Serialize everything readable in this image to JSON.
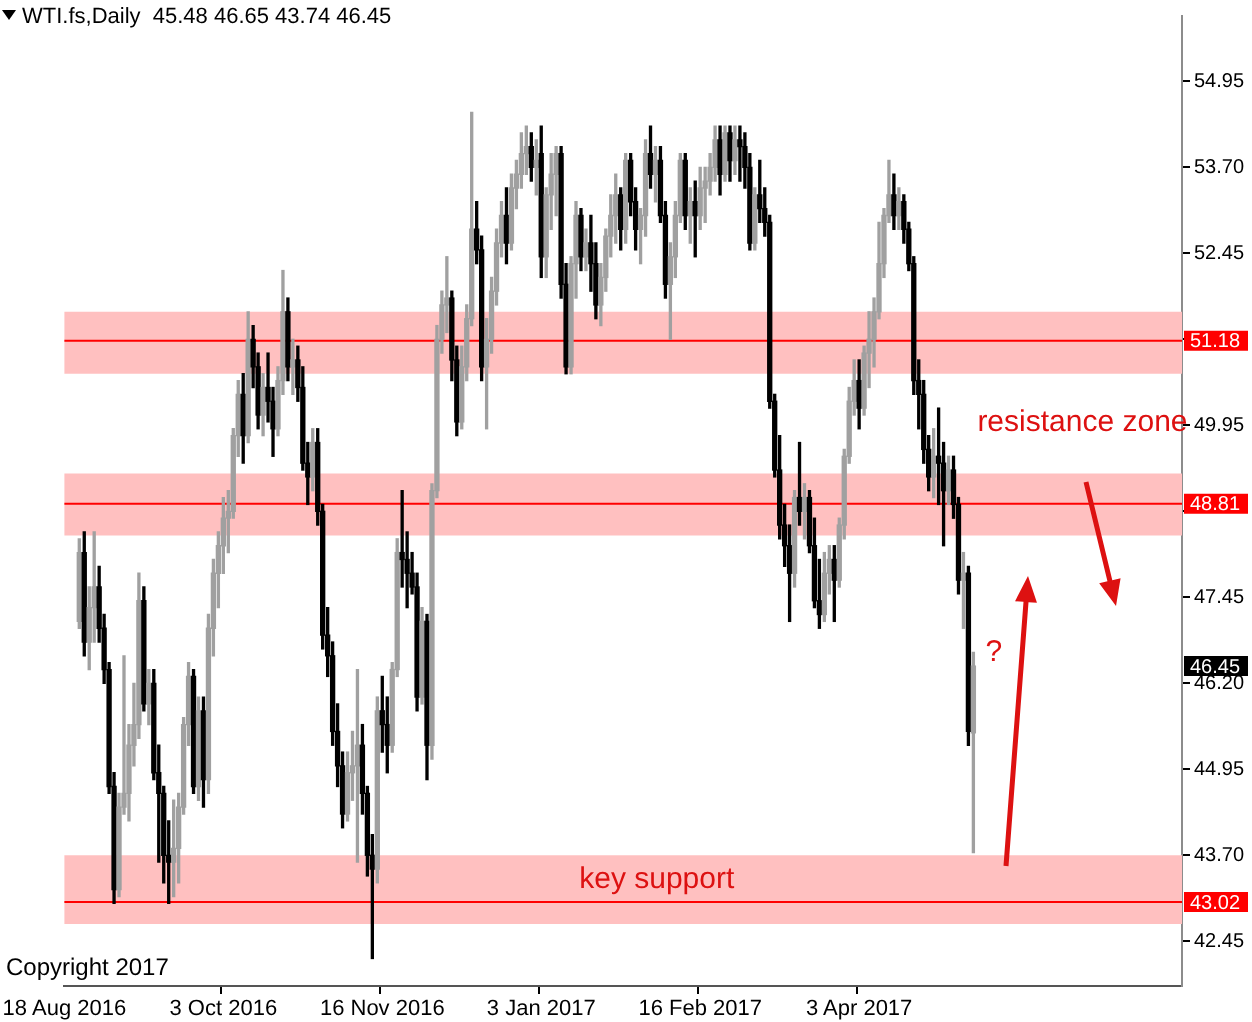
{
  "chart_data": {
    "type": "candlestick",
    "title": "WTI.fs,Daily  45.48 46.65 43.74 46.45",
    "categories": [
      "18 Aug 2016",
      null,
      null,
      null,
      null,
      null,
      null,
      null,
      null,
      null,
      null,
      null,
      null,
      null,
      null,
      null,
      null,
      null,
      null,
      null,
      null,
      null,
      null,
      null,
      null,
      null,
      null,
      null,
      null,
      null,
      null,
      null,
      "3 Oct 2016",
      null,
      null,
      null,
      null,
      null,
      null,
      null,
      null,
      null,
      null,
      null,
      null,
      null,
      null,
      null,
      null,
      null,
      null,
      null,
      null,
      null,
      null,
      null,
      null,
      null,
      null,
      null,
      null,
      null,
      null,
      null,
      "16 Nov 2016",
      null,
      null,
      null,
      null,
      null,
      null,
      null,
      null,
      null,
      null,
      null,
      null,
      null,
      null,
      null,
      null,
      null,
      null,
      null,
      null,
      null,
      null,
      null,
      null,
      null,
      null,
      null,
      null,
      null,
      null,
      null,
      "3 Jan 2017",
      null,
      null,
      null,
      null,
      null,
      null,
      null,
      null,
      null,
      null,
      null,
      null,
      null,
      null,
      null,
      null,
      null,
      null,
      null,
      null,
      null,
      null,
      null,
      null,
      null,
      null,
      null,
      null,
      null,
      null,
      null,
      "16 Feb 2017",
      null,
      null,
      null,
      null,
      null,
      null,
      null,
      null,
      null,
      null,
      null,
      null,
      null,
      null,
      null,
      null,
      null,
      null,
      null,
      null,
      null,
      null,
      null,
      null,
      null,
      null,
      null,
      null,
      null,
      null,
      null,
      "3 Apr 2017",
      null,
      null,
      null,
      null,
      null,
      null,
      null,
      null,
      null,
      null,
      null,
      null,
      null,
      null,
      null,
      null,
      null,
      null,
      null,
      null,
      null,
      null,
      null,
      null,
      null,
      null,
      null,
      null,
      null,
      null,
      null,
      null,
      null,
      null,
      null,
      null,
      null,
      null,
      null,
      null,
      null,
      null,
      null,
      null,
      null,
      null,
      null,
      null,
      null,
      null,
      null,
      null,
      null,
      null,
      null,
      null,
      null,
      null,
      null,
      null,
      null,
      null,
      null,
      null,
      null
    ],
    "ohlc": [
      null,
      null,
      null,
      [
        47.1,
        48.3,
        47.0,
        48.1
      ],
      [
        48.1,
        48.4,
        46.6,
        46.8
      ],
      [
        46.8,
        47.6,
        46.4,
        47.3
      ],
      [
        47.3,
        48.4,
        46.8,
        47.6
      ],
      [
        47.6,
        47.9,
        46.8,
        47.0
      ],
      [
        47.0,
        47.2,
        46.2,
        46.4
      ],
      [
        46.4,
        46.5,
        44.6,
        44.7
      ],
      [
        44.7,
        44.9,
        43.0,
        43.2
      ],
      [
        43.2,
        44.6,
        43.1,
        44.4
      ],
      [
        44.4,
        46.6,
        44.3,
        44.6
      ],
      [
        44.6,
        45.6,
        44.2,
        45.3
      ],
      [
        45.3,
        46.2,
        45.0,
        45.6
      ],
      [
        45.6,
        47.8,
        45.4,
        47.4
      ],
      [
        47.4,
        47.6,
        45.8,
        45.9
      ],
      [
        45.9,
        46.4,
        45.6,
        46.2
      ],
      [
        46.2,
        46.4,
        44.8,
        44.9
      ],
      [
        44.9,
        45.3,
        43.6,
        44.6
      ],
      [
        44.6,
        44.7,
        43.3,
        43.7
      ],
      [
        43.7,
        44.2,
        43.0,
        43.6
      ],
      [
        43.6,
        44.5,
        43.1,
        43.8
      ],
      [
        43.8,
        44.6,
        43.3,
        44.4
      ],
      [
        44.4,
        45.7,
        44.3,
        45.6
      ],
      [
        45.6,
        46.5,
        45.3,
        46.3
      ],
      [
        46.3,
        46.4,
        44.6,
        44.7
      ],
      [
        44.7,
        46.0,
        44.5,
        45.8
      ],
      [
        45.8,
        46.0,
        44.4,
        44.8
      ],
      [
        44.8,
        47.2,
        44.6,
        47.0
      ],
      [
        47.0,
        48.0,
        46.6,
        47.8
      ],
      [
        47.8,
        48.4,
        47.3,
        48.2
      ],
      [
        48.2,
        48.9,
        47.8,
        48.6
      ],
      [
        48.6,
        49.0,
        48.1,
        48.7
      ],
      [
        48.7,
        49.9,
        48.6,
        49.8
      ],
      [
        49.8,
        50.6,
        49.5,
        50.4
      ],
      [
        50.4,
        50.7,
        49.4,
        49.8
      ],
      [
        49.8,
        51.6,
        49.7,
        51.2
      ],
      [
        51.2,
        51.4,
        50.5,
        50.8
      ],
      [
        50.8,
        51.0,
        49.9,
        50.1
      ],
      [
        50.1,
        50.7,
        49.8,
        50.5
      ],
      [
        50.5,
        51.0,
        50.0,
        50.3
      ],
      [
        50.3,
        50.5,
        49.5,
        49.9
      ],
      [
        49.9,
        50.8,
        49.8,
        50.6
      ],
      [
        50.6,
        52.2,
        50.4,
        51.6
      ],
      [
        51.6,
        51.8,
        50.6,
        50.8
      ],
      [
        50.8,
        51.2,
        50.4,
        50.9
      ],
      [
        50.9,
        51.1,
        50.3,
        50.5
      ],
      [
        50.5,
        50.8,
        49.3,
        49.4
      ],
      [
        49.4,
        49.7,
        48.8,
        49.2
      ],
      [
        49.2,
        49.9,
        49.0,
        49.7
      ],
      [
        49.7,
        49.9,
        48.5,
        48.7
      ],
      [
        48.7,
        48.8,
        46.7,
        46.9
      ],
      [
        46.9,
        47.3,
        46.3,
        46.6
      ],
      [
        46.6,
        46.8,
        45.3,
        45.5
      ],
      [
        45.5,
        45.9,
        44.7,
        45.0
      ],
      [
        45.0,
        45.2,
        44.1,
        44.3
      ],
      [
        44.3,
        45.2,
        44.2,
        44.9
      ],
      [
        44.9,
        45.5,
        44.5,
        45.0
      ],
      [
        45.0,
        46.4,
        43.6,
        45.3
      ],
      [
        45.3,
        45.6,
        44.3,
        44.6
      ],
      [
        44.6,
        44.7,
        43.4,
        43.7
      ],
      [
        43.7,
        44.0,
        42.2,
        43.5
      ],
      [
        43.5,
        46.0,
        43.3,
        45.8
      ],
      [
        45.8,
        46.3,
        45.2,
        45.6
      ],
      [
        45.6,
        46.0,
        44.9,
        45.3
      ],
      [
        45.3,
        46.5,
        45.2,
        46.4
      ],
      [
        46.4,
        48.3,
        46.3,
        48.1
      ],
      [
        48.1,
        49.0,
        47.6,
        48.0
      ],
      [
        48.0,
        48.4,
        47.3,
        47.8
      ],
      [
        47.8,
        48.1,
        47.5,
        47.6
      ],
      [
        47.6,
        47.8,
        45.8,
        46.0
      ],
      [
        46.0,
        47.3,
        45.9,
        47.1
      ],
      [
        47.1,
        47.2,
        44.8,
        45.3
      ],
      [
        45.3,
        49.1,
        45.1,
        49.0
      ],
      [
        49.0,
        51.4,
        48.9,
        51.2
      ],
      [
        51.2,
        51.9,
        51.0,
        51.7
      ],
      [
        51.7,
        52.4,
        51.3,
        51.8
      ],
      [
        51.8,
        51.9,
        50.6,
        50.9
      ],
      [
        50.9,
        51.1,
        49.8,
        50.0
      ],
      [
        50.0,
        51.1,
        49.9,
        50.8
      ],
      [
        50.8,
        51.7,
        50.6,
        51.5
      ],
      [
        51.5,
        54.5,
        51.4,
        52.8
      ],
      [
        52.8,
        53.2,
        52.3,
        52.5
      ],
      [
        52.5,
        52.7,
        50.6,
        50.8
      ],
      [
        50.8,
        51.5,
        49.9,
        51.2
      ],
      [
        51.2,
        52.1,
        51.0,
        51.9
      ],
      [
        51.9,
        52.8,
        51.7,
        52.6
      ],
      [
        52.6,
        53.2,
        52.4,
        53.0
      ],
      [
        53.0,
        53.4,
        52.3,
        52.6
      ],
      [
        52.6,
        53.6,
        52.5,
        53.4
      ],
      [
        53.4,
        53.8,
        53.1,
        53.6
      ],
      [
        53.6,
        54.2,
        53.4,
        53.9
      ],
      [
        53.9,
        54.3,
        53.6,
        54.0
      ],
      [
        54.0,
        54.2,
        53.5,
        53.7
      ],
      [
        53.7,
        54.1,
        53.3,
        53.8
      ],
      [
        53.9,
        54.3,
        52.1,
        52.4
      ],
      [
        52.4,
        53.4,
        52.1,
        53.3
      ],
      [
        53.3,
        53.9,
        52.8,
        53.6
      ],
      [
        53.6,
        54.0,
        53.0,
        53.9
      ],
      [
        53.9,
        54.0,
        51.8,
        52.0
      ],
      [
        52.0,
        52.3,
        50.7,
        50.8
      ],
      [
        50.8,
        52.4,
        50.7,
        52.3
      ],
      [
        52.3,
        53.2,
        51.8,
        53.0
      ],
      [
        53.0,
        53.1,
        52.2,
        52.4
      ],
      [
        52.4,
        52.8,
        52.2,
        52.6
      ],
      [
        52.6,
        53.0,
        51.9,
        52.3
      ],
      [
        52.3,
        52.6,
        51.5,
        51.7
      ],
      [
        51.7,
        52.3,
        51.4,
        52.1
      ],
      [
        52.1,
        52.8,
        51.9,
        52.7
      ],
      [
        52.7,
        53.3,
        52.4,
        53.0
      ],
      [
        53.0,
        53.6,
        52.6,
        53.3
      ],
      [
        53.3,
        53.4,
        52.5,
        52.8
      ],
      [
        52.8,
        53.9,
        52.6,
        53.8
      ],
      [
        53.8,
        53.9,
        53.0,
        53.2
      ],
      [
        53.2,
        53.4,
        52.5,
        52.8
      ],
      [
        52.8,
        53.1,
        52.3,
        53.0
      ],
      [
        53.0,
        54.1,
        52.7,
        53.9
      ],
      [
        53.9,
        54.3,
        53.4,
        53.6
      ],
      [
        53.6,
        54.0,
        53.2,
        53.8
      ],
      [
        53.8,
        54.0,
        52.9,
        53.0
      ],
      [
        53.0,
        53.2,
        51.8,
        52.0
      ],
      [
        52.0,
        52.6,
        51.2,
        52.4
      ],
      [
        52.4,
        53.2,
        52.1,
        53.0
      ],
      [
        53.0,
        53.9,
        52.9,
        53.8
      ],
      [
        53.8,
        53.9,
        52.8,
        53.0
      ],
      [
        53.0,
        53.4,
        52.6,
        53.2
      ],
      [
        53.2,
        53.5,
        52.4,
        53.0
      ],
      [
        53.0,
        53.7,
        52.8,
        53.4
      ],
      [
        53.4,
        53.7,
        52.9,
        53.5
      ],
      [
        53.5,
        53.9,
        53.3,
        53.7
      ],
      [
        53.7,
        54.3,
        53.5,
        54.1
      ],
      [
        54.1,
        54.3,
        53.3,
        53.6
      ],
      [
        53.6,
        54.3,
        53.5,
        54.2
      ],
      [
        54.2,
        54.3,
        53.5,
        53.8
      ],
      [
        53.8,
        54.3,
        53.6,
        54.1
      ],
      [
        54.1,
        54.3,
        53.5,
        54.0
      ],
      [
        54.0,
        54.2,
        53.4,
        53.7
      ],
      [
        53.7,
        53.9,
        52.5,
        52.6
      ],
      [
        52.6,
        53.4,
        52.5,
        53.3
      ],
      [
        53.3,
        53.8,
        52.9,
        53.1
      ],
      [
        53.1,
        53.4,
        52.7,
        52.9
      ],
      [
        52.9,
        53.0,
        50.2,
        50.3
      ],
      [
        50.3,
        50.4,
        49.2,
        49.3
      ],
      [
        49.3,
        49.8,
        48.3,
        48.5
      ],
      [
        48.5,
        48.8,
        47.9,
        48.2
      ],
      [
        48.2,
        48.5,
        47.1,
        47.8
      ],
      [
        47.8,
        49.0,
        47.6,
        48.9
      ],
      [
        48.9,
        49.7,
        48.5,
        48.7
      ],
      [
        48.7,
        49.1,
        48.3,
        48.9
      ],
      [
        48.9,
        49.0,
        48.1,
        48.2
      ],
      [
        48.2,
        48.6,
        47.3,
        47.4
      ],
      [
        47.4,
        48.0,
        47.0,
        47.2
      ],
      [
        47.2,
        48.1,
        47.1,
        47.8
      ],
      [
        47.8,
        48.2,
        47.5,
        48.0
      ],
      [
        48.0,
        48.2,
        47.1,
        47.7
      ],
      [
        47.7,
        48.6,
        47.6,
        48.5
      ],
      [
        48.5,
        49.6,
        48.3,
        49.5
      ],
      [
        49.5,
        50.5,
        49.4,
        50.3
      ],
      [
        50.3,
        50.9,
        50.1,
        50.6
      ],
      [
        50.6,
        50.9,
        49.9,
        50.2
      ],
      [
        50.2,
        51.1,
        50.1,
        51.0
      ],
      [
        51.0,
        51.6,
        50.5,
        51.2
      ],
      [
        51.2,
        51.8,
        50.8,
        51.6
      ],
      [
        51.6,
        52.9,
        51.5,
        52.3
      ],
      [
        52.3,
        53.1,
        52.1,
        53.0
      ],
      [
        53.0,
        53.8,
        52.9,
        53.3
      ],
      [
        53.3,
        53.6,
        52.8,
        53.0
      ],
      [
        53.0,
        53.4,
        52.8,
        53.2
      ],
      [
        53.2,
        53.3,
        52.6,
        52.8
      ],
      [
        52.8,
        52.9,
        52.2,
        52.3
      ],
      [
        52.3,
        52.4,
        50.4,
        50.6
      ],
      [
        50.6,
        50.9,
        49.9,
        50.4
      ],
      [
        50.4,
        50.6,
        49.4,
        49.6
      ],
      [
        49.6,
        49.8,
        49.0,
        49.2
      ],
      [
        49.2,
        49.9,
        48.9,
        49.5
      ],
      [
        49.5,
        50.2,
        48.8,
        49.4
      ],
      [
        49.4,
        49.7,
        48.2,
        49.0
      ],
      [
        49.0,
        49.5,
        48.8,
        49.3
      ],
      [
        49.3,
        49.5,
        48.6,
        48.8
      ],
      [
        48.8,
        48.9,
        47.5,
        47.7
      ],
      [
        47.7,
        48.1,
        47.0,
        47.8
      ],
      [
        47.8,
        47.9,
        45.3,
        45.5
      ],
      [
        45.48,
        46.65,
        43.74,
        46.45
      ],
      null,
      null,
      null,
      null,
      null,
      null,
      null,
      null,
      null,
      null,
      null,
      null,
      null,
      null,
      null,
      null,
      null,
      null,
      null,
      null,
      null,
      null,
      null,
      null,
      null,
      null,
      null,
      null,
      null,
      null,
      null,
      null,
      null,
      null,
      null,
      null,
      null,
      null,
      null,
      null,
      null,
      null
    ],
    "colors": [
      null,
      null,
      null,
      "#a0a0a0",
      "#000000",
      "#a0a0a0",
      "#a0a0a0",
      "#000000",
      "#000000",
      "#000000",
      "#000000",
      "#a0a0a0",
      "#a0a0a0",
      "#a0a0a0",
      "#a0a0a0",
      "#a0a0a0",
      "#000000",
      "#a0a0a0",
      "#000000",
      "#000000",
      "#000000",
      "#000000",
      "#a0a0a0",
      "#a0a0a0",
      "#a0a0a0",
      "#a0a0a0",
      "#000000",
      "#a0a0a0",
      "#000000",
      "#a0a0a0",
      "#a0a0a0",
      "#a0a0a0",
      "#a0a0a0",
      "#a0a0a0",
      "#a0a0a0",
      "#a0a0a0",
      "#000000",
      "#a0a0a0",
      "#000000",
      "#000000",
      "#a0a0a0",
      "#000000",
      "#000000",
      "#a0a0a0",
      "#a0a0a0",
      "#000000",
      "#a0a0a0",
      "#000000",
      "#000000",
      "#000000",
      "#a0a0a0",
      "#000000",
      "#000000",
      "#000000",
      "#000000",
      "#000000",
      "#000000",
      "#a0a0a0",
      "#a0a0a0",
      "#a0a0a0",
      "#000000",
      "#000000",
      "#000000",
      "#a0a0a0",
      "#000000",
      "#000000",
      "#a0a0a0",
      "#a0a0a0",
      "#000000",
      "#000000",
      "#000000",
      "#000000",
      "#a0a0a0",
      "#000000",
      "#a0a0a0",
      "#a0a0a0",
      "#a0a0a0",
      "#a0a0a0",
      "#000000",
      "#000000",
      "#a0a0a0",
      "#a0a0a0",
      "#a0a0a0",
      "#000000",
      "#000000",
      "#a0a0a0",
      "#a0a0a0",
      "#a0a0a0",
      "#a0a0a0",
      "#000000",
      "#a0a0a0",
      "#a0a0a0",
      "#a0a0a0",
      "#a0a0a0",
      "#000000",
      "#a0a0a0",
      "#000000",
      "#a0a0a0",
      "#a0a0a0",
      "#a0a0a0",
      "#000000",
      "#000000",
      "#a0a0a0",
      "#a0a0a0",
      "#000000",
      "#a0a0a0",
      "#000000",
      "#000000",
      "#a0a0a0",
      "#a0a0a0",
      "#a0a0a0",
      "#a0a0a0",
      "#000000",
      "#a0a0a0",
      "#000000",
      "#000000",
      "#a0a0a0",
      "#a0a0a0",
      "#000000",
      "#a0a0a0",
      "#000000",
      "#000000",
      "#a0a0a0",
      "#a0a0a0",
      "#a0a0a0",
      "#000000",
      "#a0a0a0",
      "#000000",
      "#a0a0a0",
      "#a0a0a0",
      "#a0a0a0",
      "#a0a0a0",
      "#000000",
      "#a0a0a0",
      "#000000",
      "#a0a0a0",
      "#000000",
      "#000000",
      "#000000",
      "#a0a0a0",
      "#000000",
      "#000000",
      "#000000",
      "#000000",
      "#000000",
      "#000000",
      "#000000",
      "#a0a0a0",
      "#000000",
      "#a0a0a0",
      "#000000",
      "#000000",
      "#000000",
      "#a0a0a0",
      "#a0a0a0",
      "#000000",
      "#a0a0a0",
      "#a0a0a0",
      "#a0a0a0",
      "#a0a0a0",
      "#000000",
      "#a0a0a0",
      "#a0a0a0",
      "#a0a0a0",
      "#a0a0a0",
      "#a0a0a0",
      "#a0a0a0",
      "#000000",
      "#a0a0a0",
      "#000000",
      "#000000",
      "#000000",
      "#000000",
      "#000000",
      "#000000",
      "#a0a0a0",
      "#000000",
      "#000000",
      "#a0a0a0",
      "#000000",
      "#000000",
      "#a0a0a0",
      "#000000",
      "#a0a0a0",
      null,
      null,
      null,
      null,
      null,
      null,
      null,
      null,
      null,
      null,
      null,
      null,
      null,
      null,
      null,
      null,
      null,
      null,
      null,
      null,
      null,
      null,
      null,
      null,
      null,
      null,
      null,
      null,
      null,
      null,
      null,
      null,
      null,
      null,
      null,
      null,
      null,
      null,
      null,
      null,
      null,
      null
    ],
    "ylim": [
      41.8,
      55.9
    ],
    "yticks": [
      54.95,
      {
        "value": 53.7,
        "label": "53.70"
      },
      52.45,
      {
        "value": 51.2,
        "label": null
      },
      49.95,
      {
        "value": 48.7,
        "label": null
      },
      47.45,
      {
        "value": 46.2,
        "label": "46.20"
      },
      44.95,
      {
        "value": 43.7,
        "label": "43.70"
      },
      42.45
    ],
    "ref_lines": [
      {
        "axis": "y",
        "value": 51.18,
        "label": "51.18",
        "color": "#ff0000"
      },
      {
        "axis": "y",
        "value": 48.81,
        "label": "48.81",
        "color": "#ff0000"
      },
      {
        "axis": "y",
        "value": 43.02,
        "label": "43.02",
        "color": "#ff0000"
      }
    ],
    "bands": [
      {
        "axis": "y",
        "from": 50.7,
        "to": 51.6,
        "color": "#ffc0c0"
      },
      {
        "axis": "y",
        "from": 48.35,
        "to": 49.25,
        "color": "#ffc0c0"
      },
      {
        "axis": "y",
        "from": 42.7,
        "to": 43.7,
        "color": "#ffc0c0"
      }
    ],
    "annotations": [
      "resistance zone",
      "?",
      "key support",
      "Copyright 2017",
      "46.45"
    ]
  }
}
